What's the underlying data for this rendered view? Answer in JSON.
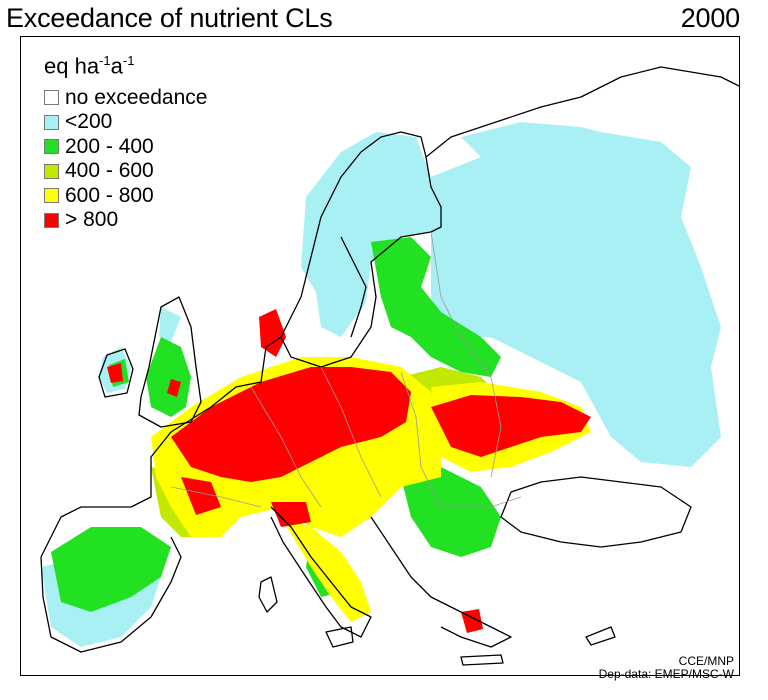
{
  "title": "Exceedance of nutrient CLs",
  "year": "2000",
  "legend": {
    "units_base": "eq ha",
    "units_exp1": "-1",
    "units_mid": "a",
    "units_exp2": "-1",
    "items": [
      {
        "label": "no exceedance",
        "color": "#ffffff"
      },
      {
        "label": "<200",
        "color": "#a8f0f4"
      },
      {
        "label": "200 - 400",
        "color": "#22e022"
      },
      {
        "label": "400 - 600",
        "color": "#c2e800"
      },
      {
        "label": "600 - 800",
        "color": "#ffff00"
      },
      {
        "label": "> 800",
        "color": "#ff0000"
      }
    ]
  },
  "credits": {
    "line1": "CCE/MNP",
    "line2": "Dep-data: EMEP/MSC-W"
  }
}
